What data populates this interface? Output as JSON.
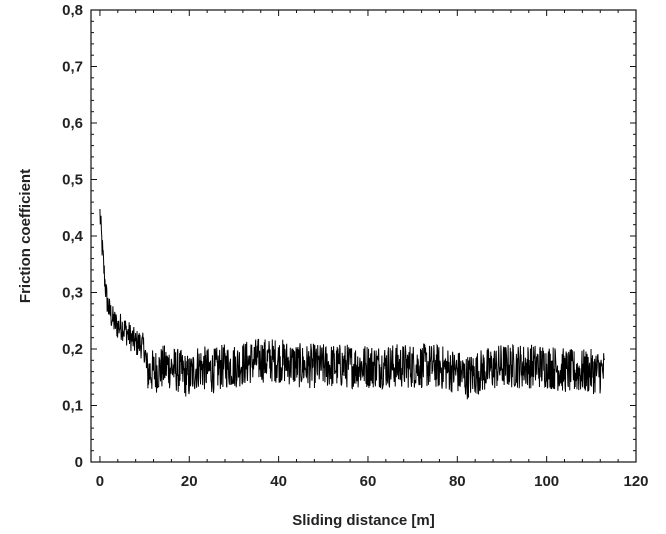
{
  "chart_data": {
    "type": "line",
    "xlabel": "Sliding distance  [m]",
    "ylabel": "Friction coefficient",
    "xlim": [
      -2,
      120
    ],
    "ylim": [
      0,
      0.8
    ],
    "xticks": [
      0,
      20,
      40,
      60,
      80,
      100,
      120
    ],
    "xtick_labels": [
      "0",
      "20",
      "40",
      "60",
      "80",
      "100",
      "120"
    ],
    "yticks": [
      0,
      0.1,
      0.2,
      0.3,
      0.4,
      0.5,
      0.6,
      0.7,
      0.8
    ],
    "ytick_labels": [
      "0",
      "0,1",
      "0,2",
      "0,3",
      "0,4",
      "0,5",
      "0,6",
      "0,7",
      "0,8"
    ],
    "grid": false,
    "line_color": "#000000",
    "series": [
      {
        "x": [
          0,
          0.5,
          1,
          1.5,
          2,
          3,
          4,
          5,
          6,
          7,
          8,
          9,
          10,
          10.5,
          12,
          15,
          18,
          20,
          22,
          25,
          28,
          30,
          35,
          40,
          45,
          50,
          55,
          60,
          65,
          70,
          75,
          80,
          82,
          85,
          90,
          95,
          100,
          105,
          110,
          113
        ],
        "y": [
          0.44,
          0.38,
          0.33,
          0.29,
          0.27,
          0.25,
          0.24,
          0.24,
          0.23,
          0.22,
          0.21,
          0.21,
          0.2,
          0.16,
          0.16,
          0.17,
          0.16,
          0.15,
          0.17,
          0.16,
          0.17,
          0.17,
          0.18,
          0.18,
          0.17,
          0.17,
          0.17,
          0.17,
          0.17,
          0.17,
          0.17,
          0.16,
          0.15,
          0.16,
          0.17,
          0.17,
          0.17,
          0.16,
          0.16,
          0.16
        ]
      }
    ]
  }
}
